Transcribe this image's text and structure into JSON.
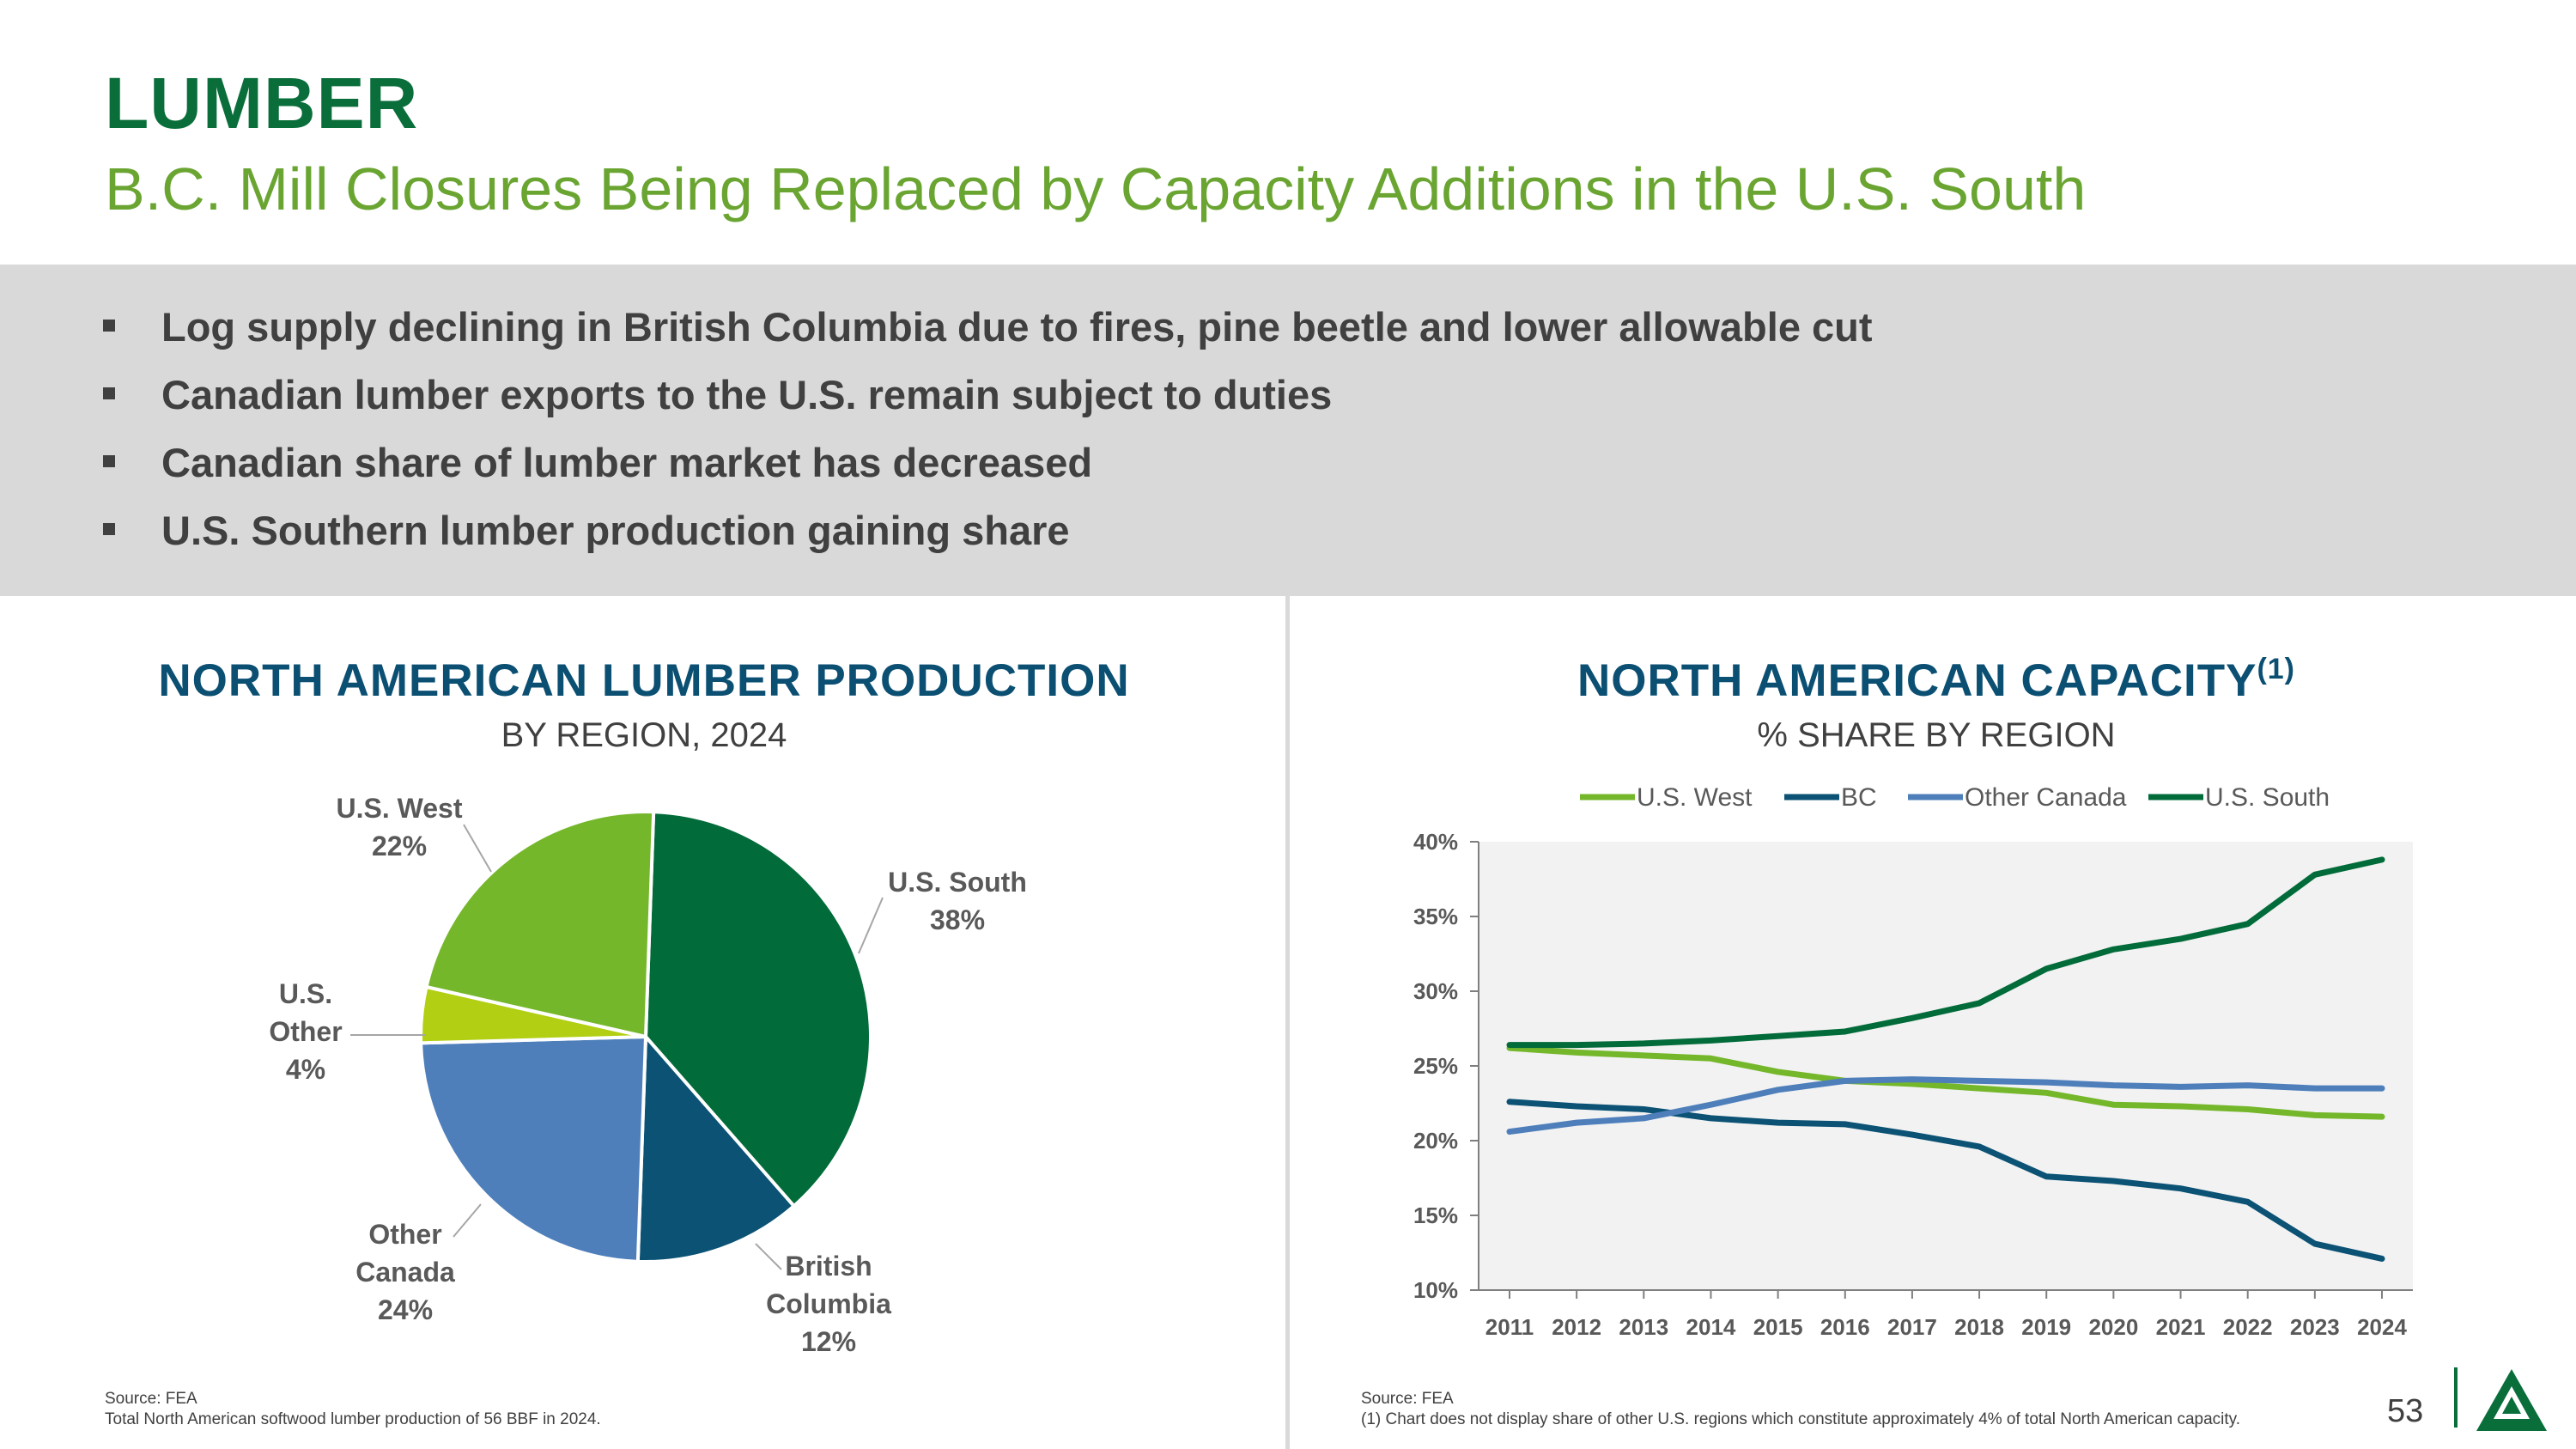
{
  "header": {
    "title": "LUMBER",
    "subtitle": "B.C. Mill Closures Being Replaced by Capacity Additions in the U.S. South"
  },
  "bullets": [
    "Log supply declining in British Columbia due to fires, pine beetle and lower allowable cut",
    "Canadian lumber exports to the U.S. remain subject to duties",
    "Canadian share of lumber market has decreased",
    "U.S. Southern lumber production gaining share"
  ],
  "left_panel": {
    "title": "NORTH AMERICAN LUMBER PRODUCTION",
    "subtitle": "BY REGION, 2024",
    "source_line1": "Source: FEA",
    "source_line2": "Total North American softwood lumber production of 56 BBF in 2024."
  },
  "right_panel": {
    "title": "NORTH AMERICAN CAPACITY",
    "title_sup": "(1)",
    "subtitle": "% SHARE BY REGION",
    "source_line1": "Source: FEA",
    "source_line2": "(1) Chart does not display share of other U.S. regions which constitute approximately 4% of total North American capacity."
  },
  "page_number": "53",
  "logo": "triangle-tree-logo",
  "chart_data": [
    {
      "type": "pie",
      "title": "NORTH AMERICAN LUMBER PRODUCTION",
      "subtitle": "BY REGION, 2024",
      "slices": [
        {
          "label_lines": [
            "U.S. South"
          ],
          "value": 38,
          "value_label": "38%",
          "color": "#026b3a"
        },
        {
          "label_lines": [
            "British",
            "Columbia"
          ],
          "value": 12,
          "value_label": "12%",
          "color": "#0b5275"
        },
        {
          "label_lines": [
            "Other",
            "Canada"
          ],
          "value": 24,
          "value_label": "24%",
          "color": "#4e7fbb"
        },
        {
          "label_lines": [
            "U.S.",
            "Other"
          ],
          "value": 4,
          "value_label": "4%",
          "color": "#b2cf13"
        },
        {
          "label_lines": [
            "U.S. West"
          ],
          "value": 22,
          "value_label": "22%",
          "color": "#75b72b"
        }
      ]
    },
    {
      "type": "line",
      "title": "NORTH AMERICAN CAPACITY",
      "subtitle": "% SHARE BY REGION",
      "x": [
        "2011",
        "2012",
        "2013",
        "2014",
        "2015",
        "2016",
        "2017",
        "2018",
        "2019",
        "2020",
        "2021",
        "2022",
        "2023",
        "2024"
      ],
      "ylim": [
        10,
        40
      ],
      "yticks": [
        "10%",
        "15%",
        "20%",
        "25%",
        "30%",
        "35%",
        "40%"
      ],
      "grid": false,
      "legend": "top",
      "series": [
        {
          "name": "U.S. West",
          "color": "#75b72b",
          "values": [
            26.2,
            25.9,
            25.7,
            25.5,
            24.6,
            24.0,
            23.8,
            23.5,
            23.2,
            22.4,
            22.3,
            22.1,
            21.7,
            21.6
          ]
        },
        {
          "name": "BC",
          "color": "#0b5275",
          "values": [
            22.6,
            22.3,
            22.1,
            21.5,
            21.2,
            21.1,
            20.4,
            19.6,
            17.6,
            17.3,
            16.8,
            15.9,
            13.1,
            12.1
          ]
        },
        {
          "name": "Other Canada",
          "color": "#4e7fbb",
          "values": [
            20.6,
            21.2,
            21.5,
            22.4,
            23.4,
            24.0,
            24.1,
            24.0,
            23.9,
            23.7,
            23.6,
            23.7,
            23.5,
            23.5
          ]
        },
        {
          "name": "U.S. South",
          "color": "#026b3a",
          "values": [
            26.4,
            26.4,
            26.5,
            26.7,
            27.0,
            27.3,
            28.2,
            29.2,
            31.5,
            32.8,
            33.5,
            34.5,
            37.8,
            38.8
          ]
        }
      ]
    }
  ]
}
